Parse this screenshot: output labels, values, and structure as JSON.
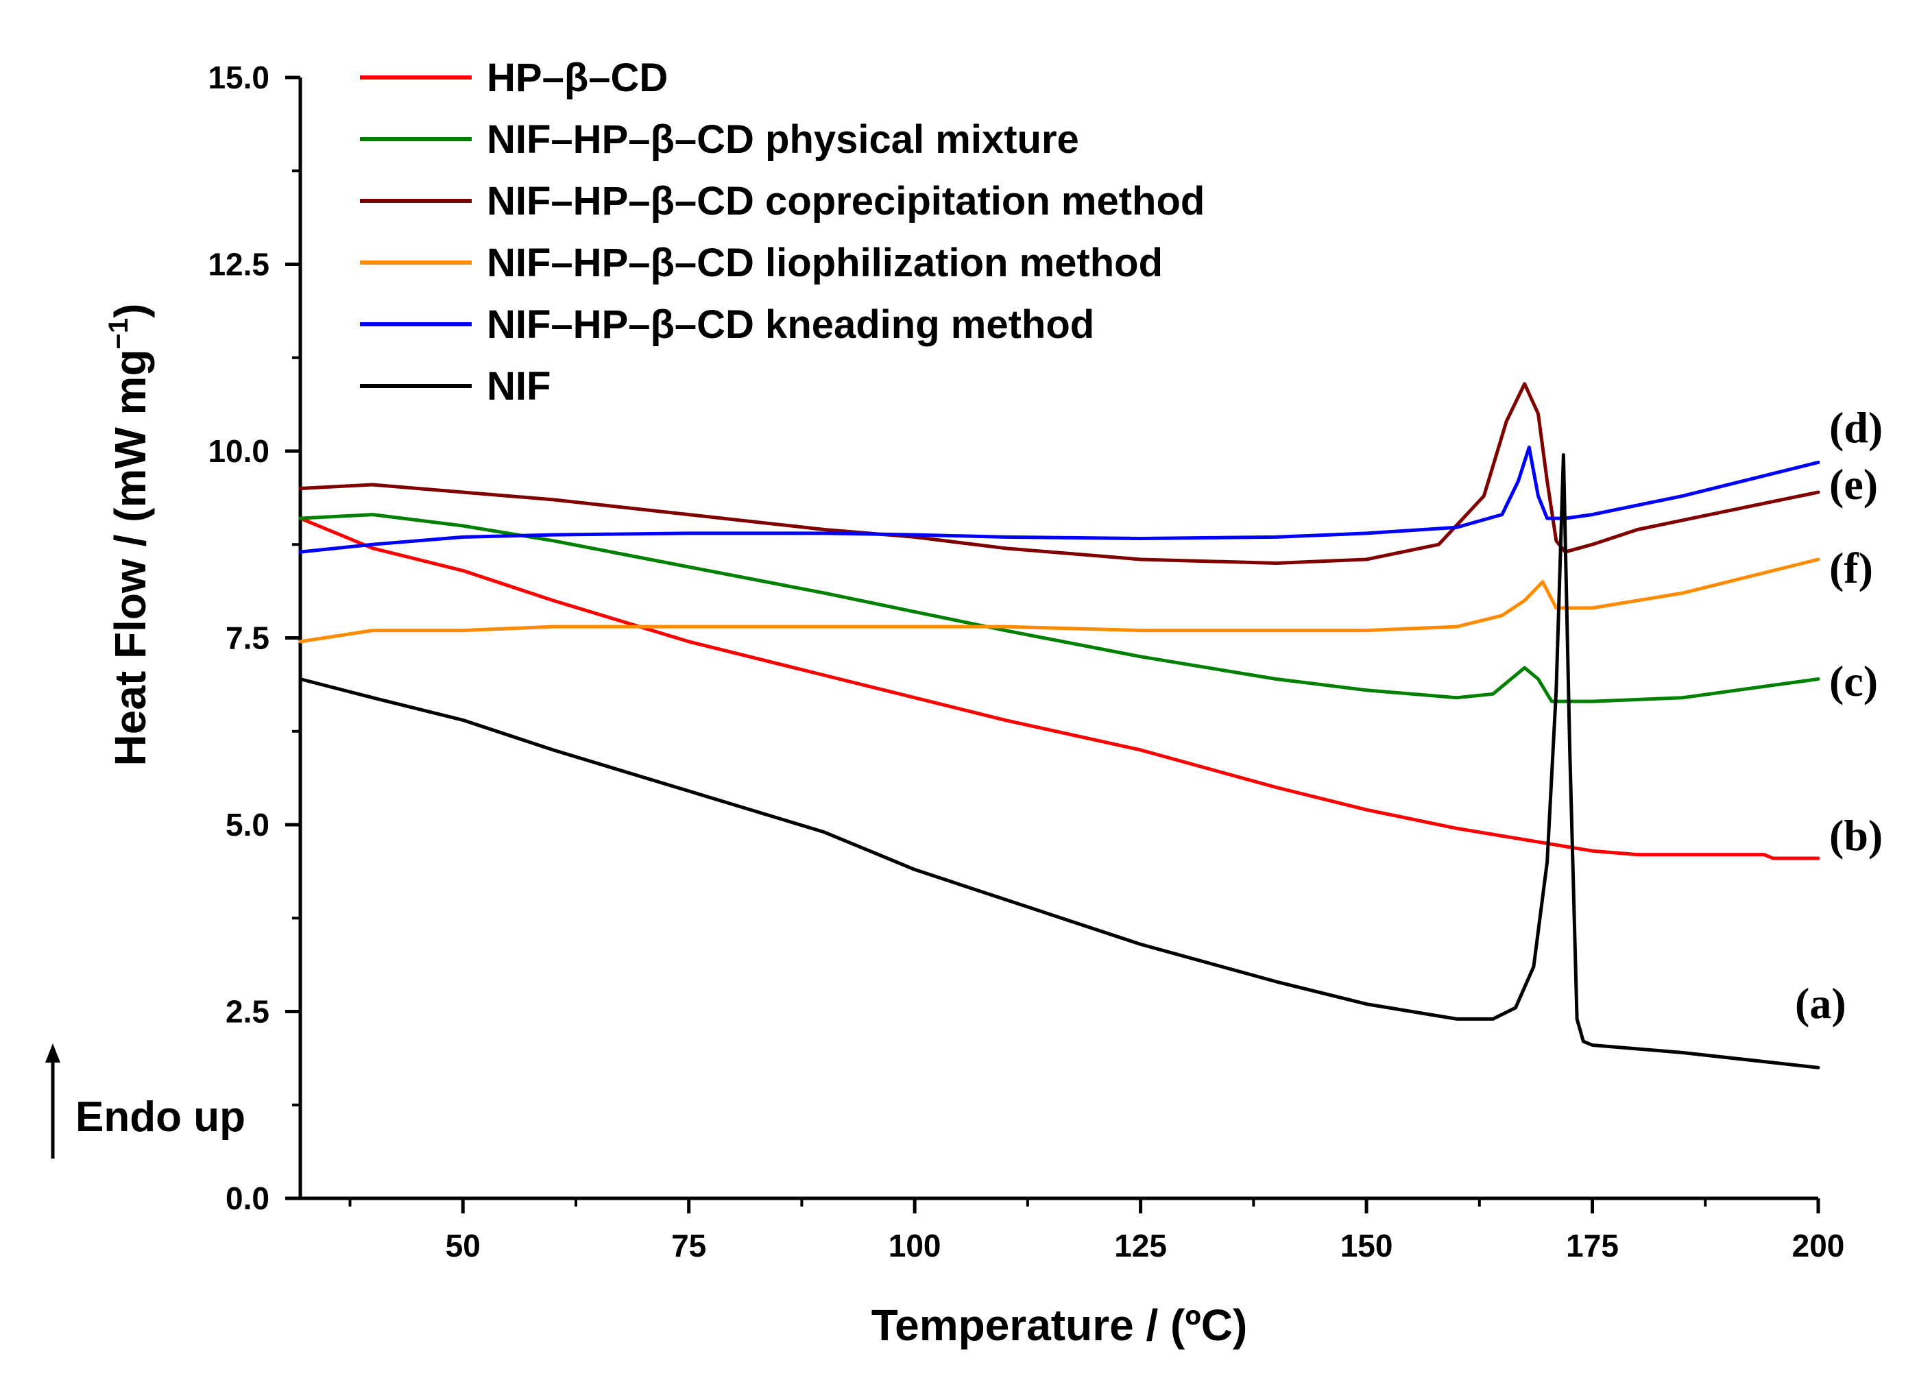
{
  "chart_data": {
    "type": "line",
    "title": "",
    "xlabel": "Temperature / (ºC)",
    "ylabel": "Heat Flow / (mW mg",
    "ylabel_sup": "−1",
    "ylabel_end": ")",
    "xlim": [
      32,
      200
    ],
    "ylim": [
      0,
      15
    ],
    "xticks": [
      "50",
      "75",
      "100",
      "125",
      "150",
      "175",
      "200"
    ],
    "yticks": [
      "0.0",
      "2.5",
      "5.0",
      "7.5",
      "10.0",
      "12.5",
      "15.0"
    ],
    "annotation": "Endo up",
    "legend_position": "top-left",
    "series": [
      {
        "name": "HP–β–CD",
        "color": "#ff0000",
        "curve_label": "(b)",
        "x": [
          32,
          40,
          50,
          60,
          75,
          90,
          100,
          110,
          125,
          140,
          150,
          160,
          170,
          175,
          180,
          190,
          194,
          195,
          200
        ],
        "y": [
          9.1,
          8.7,
          8.4,
          8.0,
          7.45,
          7.0,
          6.7,
          6.4,
          6.0,
          5.5,
          5.2,
          4.95,
          4.75,
          4.65,
          4.6,
          4.6,
          4.6,
          4.55,
          4.55
        ]
      },
      {
        "name": "NIF–HP–β–CD physical mixture",
        "color": "#008000",
        "curve_label": "(c)",
        "x": [
          32,
          40,
          50,
          60,
          75,
          90,
          100,
          110,
          125,
          140,
          150,
          160,
          164,
          166,
          167.5,
          169,
          170.5,
          175,
          185,
          200
        ],
        "y": [
          9.1,
          9.15,
          9.0,
          8.8,
          8.45,
          8.1,
          7.85,
          7.6,
          7.25,
          6.95,
          6.8,
          6.7,
          6.75,
          6.95,
          7.1,
          6.95,
          6.65,
          6.65,
          6.7,
          6.95
        ]
      },
      {
        "name": "NIF–HP–β–CD coprecipitation method",
        "color": "#800000",
        "curve_label": "(e)",
        "x": [
          32,
          40,
          50,
          60,
          75,
          90,
          100,
          110,
          125,
          140,
          150,
          158,
          163,
          165.5,
          167.5,
          169,
          170,
          171,
          172,
          175,
          180,
          190,
          200
        ],
        "y": [
          9.5,
          9.55,
          9.45,
          9.35,
          9.15,
          8.95,
          8.85,
          8.7,
          8.55,
          8.5,
          8.55,
          8.75,
          9.4,
          10.4,
          10.9,
          10.5,
          9.6,
          8.8,
          8.65,
          8.75,
          8.95,
          9.2,
          9.45
        ]
      },
      {
        "name": "NIF–HP–β–CD liophilization method",
        "color": "#ff8c00",
        "curve_label": "(f)",
        "x": [
          32,
          40,
          50,
          60,
          75,
          90,
          100,
          110,
          125,
          140,
          150,
          160,
          165,
          167.5,
          169.5,
          171,
          175,
          185,
          200
        ],
        "y": [
          7.45,
          7.6,
          7.6,
          7.65,
          7.65,
          7.65,
          7.65,
          7.65,
          7.6,
          7.6,
          7.6,
          7.65,
          7.8,
          8.0,
          8.25,
          7.9,
          7.9,
          8.1,
          8.55
        ]
      },
      {
        "name": "NIF–HP–β–CD kneading method",
        "color": "#0000ff",
        "curve_label": "(d)",
        "x": [
          32,
          40,
          50,
          60,
          75,
          90,
          100,
          110,
          125,
          140,
          150,
          160,
          165,
          166.8,
          168,
          169,
          170,
          172,
          175,
          185,
          200
        ],
        "y": [
          8.65,
          8.75,
          8.85,
          8.88,
          8.9,
          8.9,
          8.88,
          8.85,
          8.83,
          8.85,
          8.9,
          8.98,
          9.15,
          9.6,
          10.05,
          9.4,
          9.1,
          9.1,
          9.15,
          9.4,
          9.85
        ]
      },
      {
        "name": "NIF",
        "color": "#000000",
        "curve_label": "(a)",
        "x": [
          32,
          40,
          50,
          60,
          75,
          90,
          100,
          110,
          125,
          140,
          150,
          160,
          164,
          166.5,
          168.5,
          170,
          171,
          171.8,
          172.5,
          173.3,
          174,
          175,
          185,
          200
        ],
        "y": [
          6.95,
          6.7,
          6.4,
          6.0,
          5.45,
          4.9,
          4.4,
          4.0,
          3.4,
          2.9,
          2.6,
          2.4,
          2.4,
          2.55,
          3.1,
          4.5,
          6.8,
          9.95,
          6.0,
          2.4,
          2.1,
          2.05,
          1.95,
          1.75
        ]
      }
    ]
  }
}
